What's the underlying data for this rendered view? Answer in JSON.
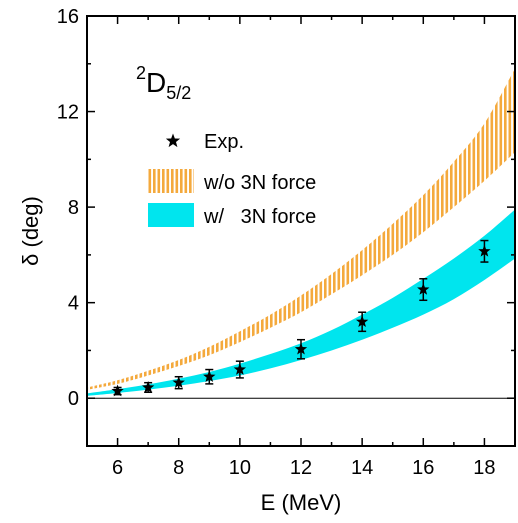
{
  "chart_data": {
    "type": "line",
    "annotation": {
      "sup": "2",
      "main": "D",
      "sub": "5/2"
    },
    "xlabel": "E (MeV)",
    "ylabel": "δ (deg)",
    "xlim": [
      5,
      19
    ],
    "ylim": [
      -2,
      16
    ],
    "xticks": [
      6,
      8,
      10,
      12,
      14,
      16,
      18
    ],
    "yticks": [
      0,
      4,
      8,
      12,
      16
    ],
    "legend_position": "upper-left",
    "grid": false,
    "colors": {
      "without_3n": "#F4A93C",
      "with_3n": "#00E5EE",
      "exp": "#000000"
    },
    "series": [
      {
        "name": "Exp.",
        "kind": "points",
        "x": [
          6,
          7,
          8,
          9,
          10,
          12,
          14,
          16,
          18
        ],
        "y": [
          0.3,
          0.45,
          0.65,
          0.9,
          1.2,
          2.05,
          3.2,
          4.55,
          6.15
        ],
        "err": [
          0.15,
          0.2,
          0.25,
          0.3,
          0.35,
          0.4,
          0.4,
          0.45,
          0.45
        ]
      },
      {
        "name": "w/o 3N force",
        "kind": "band",
        "x": [
          5,
          6,
          7,
          8,
          9,
          10,
          11,
          12,
          13,
          14,
          15,
          16,
          17,
          18,
          19
        ],
        "lower": [
          0.35,
          0.6,
          0.95,
          1.35,
          1.8,
          2.35,
          2.95,
          3.6,
          4.35,
          5.15,
          6.0,
          6.95,
          8.0,
          9.1,
          10.3
        ],
        "upper": [
          0.45,
          0.75,
          1.15,
          1.6,
          2.15,
          2.8,
          3.5,
          4.3,
          5.2,
          6.2,
          7.3,
          8.5,
          9.9,
          11.5,
          13.8
        ]
      },
      {
        "name": "w/   3N force",
        "kind": "band",
        "x": [
          5,
          6,
          7,
          8,
          9,
          10,
          11,
          12,
          13,
          14,
          15,
          16,
          17,
          18,
          19
        ],
        "lower": [
          0.1,
          0.22,
          0.36,
          0.52,
          0.72,
          0.95,
          1.25,
          1.6,
          2.0,
          2.45,
          2.95,
          3.5,
          4.15,
          4.95,
          5.85
        ],
        "upper": [
          0.2,
          0.38,
          0.58,
          0.82,
          1.1,
          1.45,
          1.85,
          2.3,
          2.85,
          3.5,
          4.2,
          5.0,
          5.85,
          6.8,
          7.9
        ]
      }
    ]
  }
}
